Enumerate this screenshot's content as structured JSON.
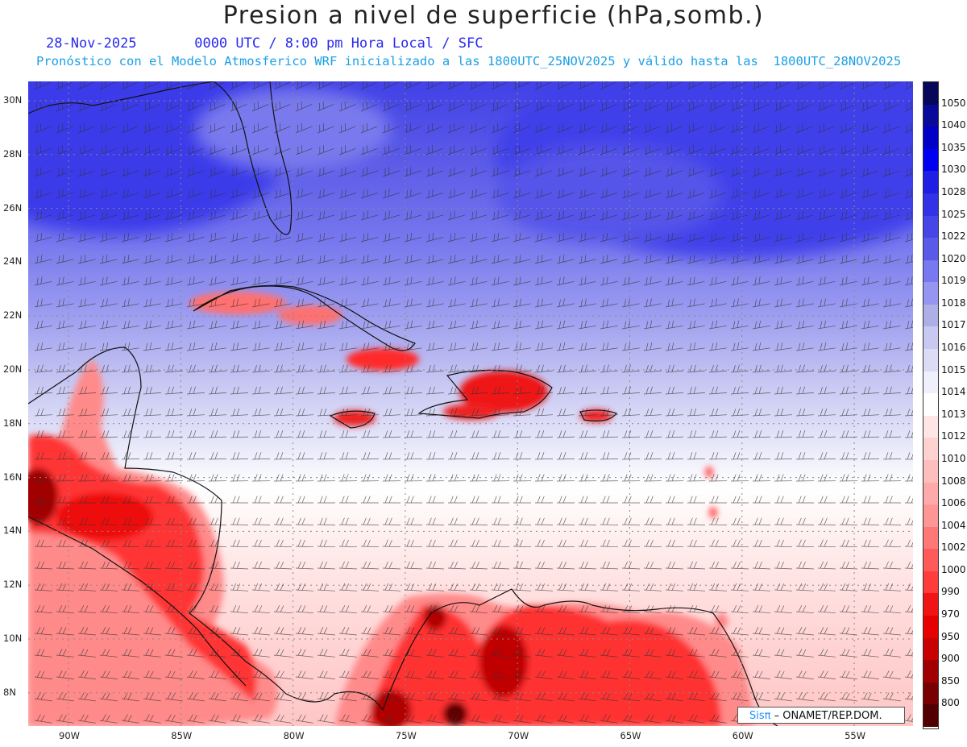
{
  "title": "Presion a nivel de superficie (hPa,somb.)",
  "subtitle": "28-Nov-2025       0000 UTC / 8:00 pm Hora Local / SFC",
  "subtitle2": "Pronóstico con el Modelo Atmosferico WRF inicializado a las 1800UTC_25NOV2025 y válido hasta las  1800UTC_28NOV2025",
  "lat_labels": [
    "30N",
    "28N",
    "26N",
    "24N",
    "22N",
    "20N",
    "18N",
    "16N",
    "14N",
    "12N",
    "10N",
    "8N"
  ],
  "lon_labels": [
    "90W",
    "85W",
    "80W",
    "75W",
    "70W",
    "65W",
    "60W",
    "55W"
  ],
  "colorbar": {
    "levels": [
      "1050",
      "1040",
      "1035",
      "1030",
      "1028",
      "1025",
      "1022",
      "1020",
      "1019",
      "1018",
      "1017",
      "1016",
      "1015",
      "1014",
      "1013",
      "1012",
      "1010",
      "1008",
      "1006",
      "1004",
      "1002",
      "1000",
      "990",
      "970",
      "950",
      "900",
      "850",
      "800"
    ],
    "colors": [
      "#08085a",
      "#0a0a9a",
      "#0000c8",
      "#0000f0",
      "#1e1ee6",
      "#3232e6",
      "#4646e8",
      "#5a5aea",
      "#7878f0",
      "#9696f2",
      "#afafe8",
      "#c8c8f0",
      "#dcdcf6",
      "#f0f0fc",
      "#ffffff",
      "#ffe6e6",
      "#ffd2d2",
      "#ffbebe",
      "#ffaaaa",
      "#ff9696",
      "#ff7878",
      "#ff5a5a",
      "#ff3c3c",
      "#f01414",
      "#e60000",
      "#c80000",
      "#a00000",
      "#780000",
      "#500000"
    ]
  },
  "credit": {
    "brand": "Sisπ",
    "org": "– ONAMET/REP.DOM."
  },
  "colors": {
    "high": "#3c3cea",
    "mid": "#dcdcf6",
    "neutral": "#ffffff",
    "low": "#ff5050",
    "very_low": "#a00000"
  }
}
